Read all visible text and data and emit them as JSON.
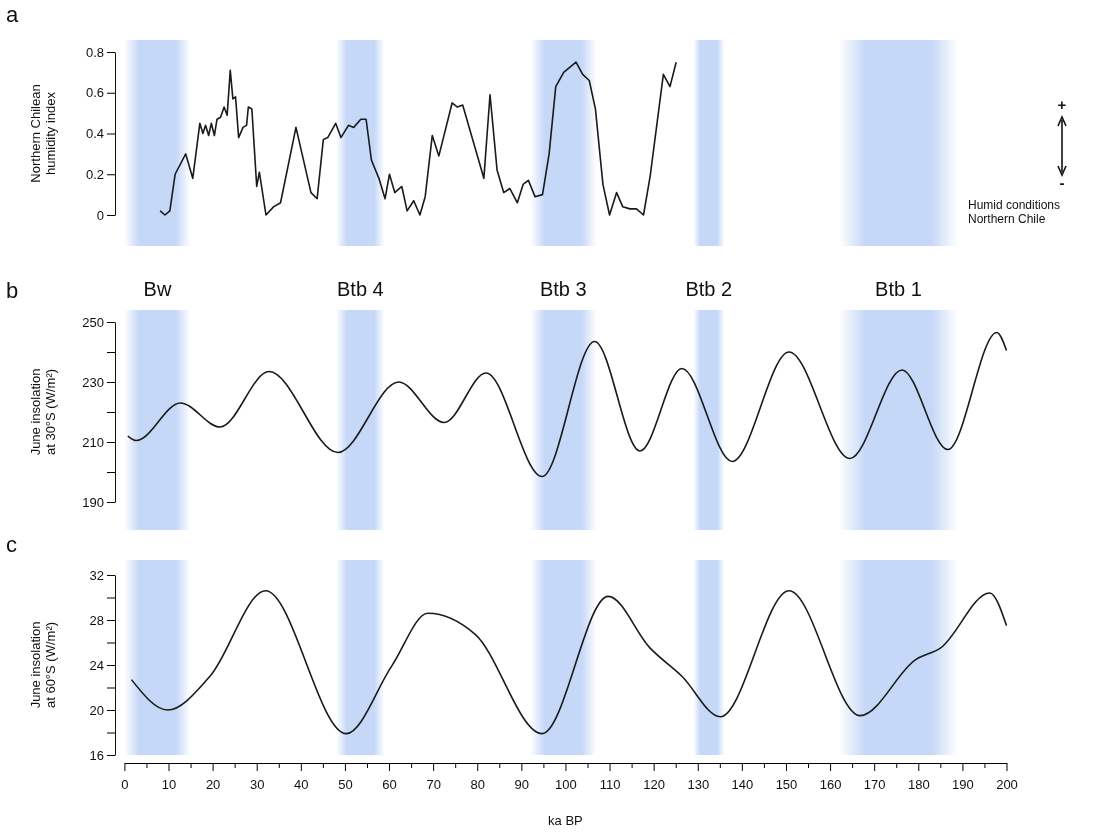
{
  "chart_data": [
    {
      "type": "line",
      "title": "a",
      "ylabel": "Northern Chilean\nhumidity index",
      "xlim": [
        0,
        200
      ],
      "ylim": [
        0,
        0.8
      ],
      "yticks": [
        0,
        0.2,
        0.4,
        0.6,
        0.8
      ],
      "tick_labels": "y",
      "grid": false,
      "marker": "none",
      "line_style": "solid",
      "annotations": [
        "+",
        "-",
        "Humid conditions\nNorthern Chile"
      ],
      "bands": [
        {
          "axis": "x",
          "from": 0,
          "to": 15,
          "color": "#c6d8f8"
        },
        {
          "axis": "x",
          "from": 48,
          "to": 59,
          "color": "#c6d8f8"
        },
        {
          "axis": "x",
          "from": 92,
          "to": 107,
          "color": "#c6d8f8"
        },
        {
          "axis": "x",
          "from": 129,
          "to": 136,
          "color": "#c6d8f8"
        },
        {
          "axis": "x",
          "from": 162,
          "to": 189,
          "color": "#c6d8f8"
        }
      ],
      "series": [
        {
          "color": "#1a1a1a",
          "x": [
            8.1,
            9.2,
            10.3,
            11.5,
            13.9,
            15.5,
            17.1,
            17.8,
            18.4,
            19.1,
            19.7,
            20.4,
            21.0,
            21.8,
            22.6,
            23.3,
            24.0,
            24.6,
            25.2,
            25.9,
            26.9,
            27.7,
            28.1,
            28.9,
            30.0,
            30.6,
            32.1,
            33.8,
            35.4,
            38.9,
            42.3,
            43.7,
            45.1,
            46.1,
            47.9,
            49.1,
            50.8,
            52.0,
            53.6,
            54.8,
            56.0,
            57.7,
            59.1,
            60.1,
            61.3,
            62.9,
            64.1,
            65.6,
            67.0,
            68.2,
            69.8,
            71.3,
            74.3,
            75.5,
            76.7,
            81.5,
            82.9,
            84.5,
            86.0,
            87.4,
            89.1,
            90.4,
            91.6,
            93.1,
            94.8,
            96.3,
            97.8,
            99.6,
            102.4,
            103.9,
            105.4,
            106.8,
            108.5,
            110.0,
            111.6,
            113.0,
            114.6,
            116.1,
            117.7,
            119.2,
            122.2,
            123.7,
            125.1
          ],
          "values": [
            0.02,
            0,
            0.02,
            0.2,
            0.3,
            0.18,
            0.45,
            0.4,
            0.44,
            0.39,
            0.45,
            0.39,
            0.47,
            0.48,
            0.53,
            0.49,
            0.71,
            0.57,
            0.58,
            0.38,
            0.43,
            0.44,
            0.53,
            0.52,
            0.14,
            0.21,
            0,
            0.04,
            0.06,
            0.43,
            0.11,
            0.08,
            0.37,
            0.38,
            0.45,
            0.38,
            0.44,
            0.43,
            0.47,
            0.47,
            0.27,
            0.18,
            0.08,
            0.2,
            0.11,
            0.14,
            0.02,
            0.07,
            0,
            0.09,
            0.39,
            0.29,
            0.55,
            0.53,
            0.54,
            0.18,
            0.59,
            0.22,
            0.11,
            0.13,
            0.06,
            0.15,
            0.17,
            0.09,
            0.1,
            0.3,
            0.63,
            0.7,
            0.75,
            0.69,
            0.66,
            0.52,
            0.15,
            0,
            0.11,
            0.04,
            0.03,
            0.03,
            0,
            0.19,
            0.69,
            0.63,
            0.75
          ]
        }
      ]
    },
    {
      "type": "line",
      "title": "b",
      "ylabel": "June insolation\nat 30°S (W/m²)",
      "xlim": [
        0,
        200
      ],
      "ylim": [
        190,
        250
      ],
      "yticks": [
        190,
        {
          "value": 200,
          "label": null
        },
        210,
        {
          "value": 220,
          "label": null
        },
        230,
        {
          "value": 240,
          "label": null
        },
        250
      ],
      "tick_labels": "y",
      "grid": false,
      "marker": "none",
      "line_style": "solid",
      "bands": [
        {
          "axis": "x",
          "from": 0,
          "to": 15,
          "label": "Bw",
          "color": "#c6d8f8"
        },
        {
          "axis": "x",
          "from": 48,
          "to": 59,
          "label": "Btb 4",
          "color": "#c6d8f8"
        },
        {
          "axis": "x",
          "from": 92,
          "to": 107,
          "label": "Btb 3",
          "color": "#c6d8f8"
        },
        {
          "axis": "x",
          "from": 129,
          "to": 136,
          "label": "Btb 2",
          "color": "#c6d8f8"
        },
        {
          "axis": "x",
          "from": 162,
          "to": 189,
          "label": "Btb 1",
          "color": "#c6d8f8"
        }
      ],
      "series": [
        {
          "color": "#1a1a1a",
          "x": [
            0.8,
            2.7,
            12.7,
            21.7,
            32.8,
            48.4,
            62.2,
            72.5,
            82.0,
            94.7,
            106.6,
            116.9,
            126.4,
            137.8,
            150.7,
            164.5,
            176.3,
            186.7,
            197.8,
            200
          ],
          "values": [
            212,
            210.5,
            223,
            215,
            233.5,
            206.5,
            230,
            216.5,
            233,
            198.5,
            243.5,
            207,
            234.5,
            203.5,
            240,
            204.5,
            234,
            207.5,
            246.5,
            240.5
          ]
        }
      ]
    },
    {
      "type": "line",
      "title": "c",
      "ylabel": "June insolation\nat 60°S (W/m²)",
      "xlabel": "ka BP",
      "xlim": [
        0,
        200
      ],
      "ylim": [
        16,
        32
      ],
      "yticks": [
        16,
        {
          "value": 18,
          "label": null
        },
        20,
        {
          "value": 22,
          "label": null
        },
        24,
        {
          "value": 26,
          "label": null
        },
        28,
        {
          "value": 30,
          "label": null
        },
        32
      ],
      "xticks": [
        0,
        {
          "value": 5,
          "label": null
        },
        10,
        {
          "value": 15,
          "label": null
        },
        20,
        {
          "value": 25,
          "label": null
        },
        30,
        {
          "value": 35,
          "label": null
        },
        40,
        {
          "value": 45,
          "label": null
        },
        50,
        {
          "value": 55,
          "label": null
        },
        60,
        {
          "value": 65,
          "label": null
        },
        70,
        {
          "value": 75,
          "label": null
        },
        80,
        {
          "value": 85,
          "label": null
        },
        90,
        {
          "value": 95,
          "label": null
        },
        100,
        {
          "value": 105,
          "label": null
        },
        110,
        {
          "value": 115,
          "label": null
        },
        120,
        {
          "value": 125,
          "label": null
        },
        130,
        {
          "value": 135,
          "label": null
        },
        140,
        {
          "value": 145,
          "label": null
        },
        150,
        {
          "value": 155,
          "label": null
        },
        160,
        {
          "value": 165,
          "label": null
        },
        170,
        {
          "value": 175,
          "label": null
        },
        180,
        {
          "value": 185,
          "label": null
        },
        190,
        {
          "value": 195,
          "label": null
        },
        200
      ],
      "grid": false,
      "marker": "none",
      "line_style": "solid",
      "bands": [
        {
          "axis": "x",
          "from": 0,
          "to": 15,
          "color": "#c6d8f8"
        },
        {
          "axis": "x",
          "from": 48,
          "to": 59,
          "color": "#c6d8f8"
        },
        {
          "axis": "x",
          "from": 92,
          "to": 107,
          "color": "#c6d8f8"
        },
        {
          "axis": "x",
          "from": 129,
          "to": 136,
          "color": "#c6d8f8"
        },
        {
          "axis": "x",
          "from": 162,
          "to": 189,
          "color": "#c6d8f8"
        }
      ],
      "series": [
        {
          "color": "#1a1a1a",
          "x": [
            1.6,
            9.8,
            19.4,
            32.0,
            50.3,
            60.6,
            68.8,
            79.6,
            94.7,
            109.7,
            119.2,
            126.4,
            135.1,
            150.7,
            166.8,
            179.5,
            185.0,
            196.2,
            200.0
          ],
          "values": [
            22.7,
            20.0,
            23.0,
            30.6,
            17.9,
            23.9,
            28.6,
            26.7,
            17.9,
            30.1,
            25.5,
            23.0,
            19.4,
            30.6,
            19.5,
            24.5,
            25.5,
            30.4,
            27.5
          ]
        }
      ]
    }
  ]
}
